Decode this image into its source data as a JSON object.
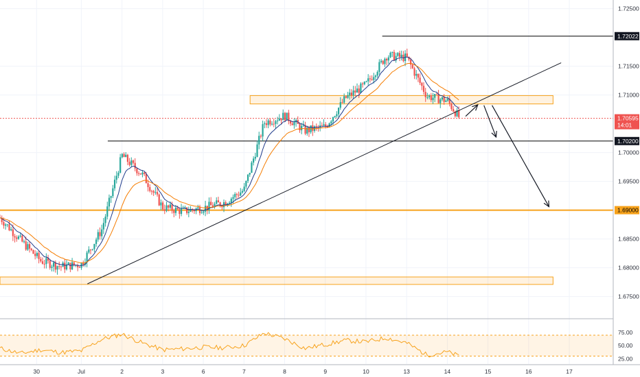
{
  "chart_data": {
    "type": "candlestick",
    "symbol_pair_axis": "price",
    "y_ticks": [
      "1.72500",
      "1.71500",
      "1.71000",
      "1.70000",
      "1.69500",
      "1.68500",
      "1.68000",
      "1.67500"
    ],
    "x_ticks": [
      {
        "label": "30",
        "t": 0.9
      },
      {
        "label": "Jul",
        "t": 2.0
      },
      {
        "label": "2",
        "t": 3.0
      },
      {
        "label": "3",
        "t": 4.0
      },
      {
        "label": "6",
        "t": 5.0
      },
      {
        "label": "7",
        "t": 6.0
      },
      {
        "label": "8",
        "t": 7.0
      },
      {
        "label": "9",
        "t": 8.0
      },
      {
        "label": "10",
        "t": 9.0
      },
      {
        "label": "13",
        "t": 10.0
      },
      {
        "label": "14",
        "t": 11.0
      },
      {
        "label": "15",
        "t": 12.0
      },
      {
        "label": "16",
        "t": 13.0
      },
      {
        "label": "17",
        "t": 14.0
      }
    ],
    "ylim": [
      1.6715,
      1.7265
    ],
    "xlim": [
      0,
      15.08
    ],
    "price_badges": [
      {
        "label": "1.72022",
        "value": 1.72022,
        "style": "black"
      },
      {
        "label": "1.70595",
        "sub": "14:01",
        "value": 1.70595,
        "style": "red"
      },
      {
        "label": "1.70200",
        "value": 1.702,
        "style": "black"
      },
      {
        "label": "1.69000",
        "value": 1.69,
        "style": "orange"
      }
    ],
    "horizontal_lines": [
      {
        "value": 1.72022,
        "t_start": 9.4,
        "color": "#000000"
      },
      {
        "value": 1.702,
        "t_start": 2.65,
        "color": "#000000"
      },
      {
        "value": 1.69,
        "t_start": 0.0,
        "color": "#f7a21b"
      },
      {
        "value": 1.70595,
        "t_start": 0.0,
        "color": "#ef5350",
        "dashed": true
      }
    ],
    "zones": [
      {
        "t_start": 6.15,
        "t_end": 13.6,
        "top": 1.7099,
        "bottom": 1.70845
      },
      {
        "t_start": 0.0,
        "t_end": 13.6,
        "top": 1.6784,
        "bottom": 1.6771
      }
    ],
    "trendline": {
      "t1": 2.15,
      "v1": 1.6772,
      "t2": 13.8,
      "v2": 1.7156
    },
    "arrows": [
      {
        "t1": 11.45,
        "v1": 1.7063,
        "t2": 11.75,
        "v2": 1.7083
      },
      {
        "t1": 11.9,
        "v1": 1.7082,
        "t2": 12.2,
        "v2": 1.7027
      },
      {
        "t1": 12.1,
        "v1": 1.7082,
        "t2": 13.5,
        "v2": 1.6906
      }
    ],
    "candles": [
      [
        0.0,
        1.6895,
        1.6905,
        1.6883,
        1.6887
      ],
      [
        0.5,
        1.685,
        1.6862,
        1.6835,
        1.6848
      ],
      [
        1.0,
        1.6815,
        1.6825,
        1.6797,
        1.6812
      ],
      [
        1.5,
        1.6808,
        1.6825,
        1.6793,
        1.6802
      ],
      [
        2.0,
        1.6798,
        1.6818,
        1.679,
        1.6806
      ],
      [
        2.5,
        1.6858,
        1.6872,
        1.6843,
        1.6866
      ],
      [
        3.0,
        1.6985,
        1.7005,
        1.6966,
        1.6995
      ],
      [
        3.5,
        1.6975,
        1.6988,
        1.6958,
        1.6962
      ],
      [
        4.0,
        1.6918,
        1.693,
        1.6895,
        1.6905
      ],
      [
        4.5,
        1.6905,
        1.6915,
        1.6887,
        1.6898
      ],
      [
        5.0,
        1.6906,
        1.6918,
        1.6892,
        1.6904
      ],
      [
        5.5,
        1.6915,
        1.6928,
        1.6898,
        1.6913
      ],
      [
        6.0,
        1.6925,
        1.6942,
        1.6912,
        1.6935
      ],
      [
        6.5,
        1.7048,
        1.7068,
        1.7035,
        1.7052
      ],
      [
        7.0,
        1.7072,
        1.7085,
        1.7055,
        1.7064
      ],
      [
        7.5,
        1.7035,
        1.7048,
        1.7018,
        1.7038
      ],
      [
        8.0,
        1.7042,
        1.7052,
        1.7028,
        1.7045
      ],
      [
        8.5,
        1.7088,
        1.7102,
        1.7072,
        1.7095
      ],
      [
        9.0,
        1.7115,
        1.7128,
        1.7102,
        1.7118
      ],
      [
        9.5,
        1.7165,
        1.7203,
        1.7148,
        1.7168
      ],
      [
        10.0,
        1.7172,
        1.7182,
        1.7158,
        1.7165
      ],
      [
        10.5,
        1.7108,
        1.7122,
        1.7092,
        1.7098
      ],
      [
        11.0,
        1.7092,
        1.7103,
        1.7082,
        1.709
      ],
      [
        11.3,
        1.7078,
        1.7085,
        1.7052,
        1.706
      ]
    ],
    "rsi_ticks": [
      "75.00",
      "50.00",
      "25.00"
    ],
    "rsi_range": [
      15,
      100
    ],
    "rsi_band": [
      30,
      70
    ],
    "rsi_values": [
      [
        0.0,
        45
      ],
      [
        0.5,
        35
      ],
      [
        1.0,
        42
      ],
      [
        1.5,
        37
      ],
      [
        2.0,
        40
      ],
      [
        2.5,
        62
      ],
      [
        3.0,
        72
      ],
      [
        3.5,
        55
      ],
      [
        4.0,
        42
      ],
      [
        4.5,
        44
      ],
      [
        5.0,
        47
      ],
      [
        5.5,
        46
      ],
      [
        6.0,
        50
      ],
      [
        6.5,
        74
      ],
      [
        7.0,
        63
      ],
      [
        7.5,
        45
      ],
      [
        8.0,
        52
      ],
      [
        8.5,
        60
      ],
      [
        9.0,
        57
      ],
      [
        9.5,
        65
      ],
      [
        10.0,
        55
      ],
      [
        10.5,
        32
      ],
      [
        11.0,
        38
      ],
      [
        11.3,
        30
      ]
    ]
  }
}
